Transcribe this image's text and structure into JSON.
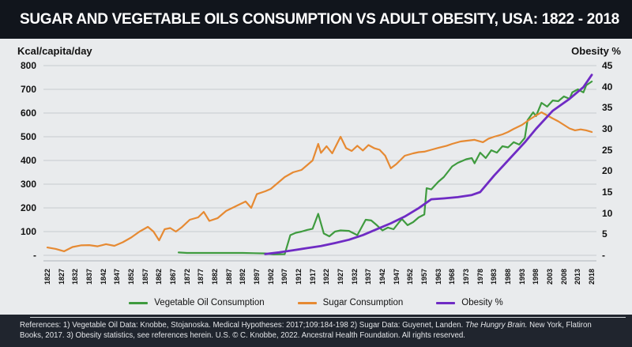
{
  "title": "SUGAR AND VEGETABLE OILS CONSUMPTION VS ADULT OBESITY, USA: 1822 - 2018",
  "left_axis": {
    "title": "Kcal/capita/day",
    "ticks": [
      "800",
      "700",
      "600",
      "500",
      "400",
      "300",
      "200",
      "100",
      "-"
    ]
  },
  "right_axis": {
    "title": "Obesity %",
    "ticks": [
      "45",
      "40",
      "35",
      "30",
      "25",
      "20",
      "15",
      "10",
      "5",
      "-"
    ]
  },
  "x_axis": {
    "labels": [
      "1822",
      "1827",
      "1832",
      "1837",
      "1842",
      "1847",
      "1852",
      "1857",
      "1862",
      "1867",
      "1872",
      "1877",
      "1882",
      "1887",
      "1892",
      "1897",
      "1902",
      "1907",
      "1912",
      "1917",
      "1922",
      "1927",
      "1932",
      "1937",
      "1942",
      "1947",
      "1952",
      "1957",
      "1963",
      "1968",
      "1973",
      "1978",
      "1983",
      "1988",
      "1993",
      "1998",
      "2003",
      "2008",
      "2013",
      "2018"
    ]
  },
  "legend": [
    {
      "label": "Vegetable Oil Consumption",
      "color": "#3f9b3f"
    },
    {
      "label": "Sugar Consumption",
      "color": "#e68a33"
    },
    {
      "label": "Obesity %",
      "color": "#6f2bc4"
    }
  ],
  "colors": {
    "titlebar_bg": "#11151c",
    "page_bg": "#20252e",
    "panel_bg": "#e9ebed",
    "gridline": "#c6cbd0",
    "axis_line": "#aeb4ba",
    "veg_oil": "#3f9b3f",
    "sugar": "#e68a33",
    "obesity": "#6f2bc4",
    "footer_text": "#e3e5e8"
  },
  "footer": {
    "segments": [
      {
        "text": "References: 1) Vegetable Oil Data: Knobbe, Stojanoska. Medical Hypotheses: 2017;109:184-198  2) Sugar Data: Guyenet, Landen. ",
        "italic": false
      },
      {
        "text": "The Hungry Brain.",
        "italic": true
      },
      {
        "text": " New York, Flatiron Books, 2017.  3) Obesity statistics, see references herein. U.S. © C. Knobbe, 2022. Ancestral Health Foundation. All rights reserved.",
        "italic": false
      }
    ]
  },
  "chart_data": {
    "type": "line",
    "title": "SUGAR AND VEGETABLE OILS CONSUMPTION VS ADULT OBESITY, USA: 1822 - 2018",
    "x_label_years": [
      1822,
      1827,
      1832,
      1837,
      1842,
      1847,
      1852,
      1857,
      1862,
      1867,
      1872,
      1877,
      1882,
      1887,
      1892,
      1897,
      1902,
      1907,
      1912,
      1917,
      1922,
      1927,
      1932,
      1937,
      1942,
      1947,
      1952,
      1957,
      1963,
      1968,
      1973,
      1978,
      1983,
      1988,
      1993,
      1998,
      2003,
      2008,
      2013,
      2018
    ],
    "left_ylabel": "Kcal/capita/day",
    "right_ylabel": "Obesity %",
    "left_ylim": [
      0,
      800
    ],
    "right_ylim": [
      0,
      45
    ],
    "grid": true,
    "legend_position": "bottom",
    "series": [
      {
        "name": "Vegetable Oil Consumption",
        "axis": "left",
        "color": "#3f9b3f",
        "points": [
          [
            1869,
            12
          ],
          [
            1872,
            10
          ],
          [
            1876,
            10
          ],
          [
            1880,
            10
          ],
          [
            1884,
            10
          ],
          [
            1888,
            10
          ],
          [
            1892,
            10
          ],
          [
            1896,
            9
          ],
          [
            1900,
            8
          ],
          [
            1903,
            4
          ],
          [
            1907,
            5
          ],
          [
            1909,
            85
          ],
          [
            1911,
            95
          ],
          [
            1913,
            100
          ],
          [
            1915,
            107
          ],
          [
            1917,
            112
          ],
          [
            1919,
            175
          ],
          [
            1921,
            92
          ],
          [
            1923,
            80
          ],
          [
            1925,
            100
          ],
          [
            1927,
            105
          ],
          [
            1930,
            103
          ],
          [
            1933,
            85
          ],
          [
            1936,
            150
          ],
          [
            1938,
            147
          ],
          [
            1940,
            127
          ],
          [
            1942,
            105
          ],
          [
            1944,
            117
          ],
          [
            1946,
            110
          ],
          [
            1948,
            140
          ],
          [
            1949,
            153
          ],
          [
            1951,
            127
          ],
          [
            1953,
            140
          ],
          [
            1955,
            160
          ],
          [
            1957,
            172
          ],
          [
            1958,
            283
          ],
          [
            1960,
            278
          ],
          [
            1963,
            310
          ],
          [
            1965,
            330
          ],
          [
            1968,
            375
          ],
          [
            1970,
            390
          ],
          [
            1973,
            405
          ],
          [
            1975,
            410
          ],
          [
            1976,
            388
          ],
          [
            1978,
            433
          ],
          [
            1980,
            410
          ],
          [
            1982,
            443
          ],
          [
            1984,
            433
          ],
          [
            1986,
            460
          ],
          [
            1988,
            455
          ],
          [
            1990,
            477
          ],
          [
            1992,
            467
          ],
          [
            1994,
            495
          ],
          [
            1995,
            570
          ],
          [
            1997,
            603
          ],
          [
            1998,
            587
          ],
          [
            2000,
            643
          ],
          [
            2002,
            627
          ],
          [
            2004,
            653
          ],
          [
            2006,
            650
          ],
          [
            2008,
            670
          ],
          [
            2010,
            660
          ],
          [
            2011,
            687
          ],
          [
            2013,
            700
          ],
          [
            2015,
            687
          ],
          [
            2016,
            717
          ],
          [
            2018,
            733
          ]
        ]
      },
      {
        "name": "Sugar Consumption",
        "axis": "left",
        "color": "#e68a33",
        "points": [
          [
            1822,
            33
          ],
          [
            1825,
            27
          ],
          [
            1828,
            17
          ],
          [
            1831,
            35
          ],
          [
            1834,
            42
          ],
          [
            1837,
            43
          ],
          [
            1840,
            38
          ],
          [
            1843,
            47
          ],
          [
            1846,
            40
          ],
          [
            1849,
            55
          ],
          [
            1852,
            75
          ],
          [
            1855,
            100
          ],
          [
            1858,
            120
          ],
          [
            1860,
            100
          ],
          [
            1862,
            63
          ],
          [
            1864,
            110
          ],
          [
            1866,
            115
          ],
          [
            1868,
            100
          ],
          [
            1870,
            117
          ],
          [
            1873,
            150
          ],
          [
            1876,
            160
          ],
          [
            1878,
            183
          ],
          [
            1880,
            145
          ],
          [
            1883,
            157
          ],
          [
            1886,
            187
          ],
          [
            1890,
            210
          ],
          [
            1893,
            227
          ],
          [
            1895,
            200
          ],
          [
            1897,
            258
          ],
          [
            1900,
            270
          ],
          [
            1902,
            280
          ],
          [
            1904,
            300
          ],
          [
            1907,
            330
          ],
          [
            1910,
            350
          ],
          [
            1913,
            360
          ],
          [
            1915,
            380
          ],
          [
            1917,
            400
          ],
          [
            1919,
            470
          ],
          [
            1920,
            432
          ],
          [
            1922,
            460
          ],
          [
            1924,
            430
          ],
          [
            1927,
            500
          ],
          [
            1929,
            452
          ],
          [
            1931,
            440
          ],
          [
            1933,
            462
          ],
          [
            1935,
            442
          ],
          [
            1937,
            465
          ],
          [
            1939,
            452
          ],
          [
            1941,
            445
          ],
          [
            1943,
            420
          ],
          [
            1945,
            367
          ],
          [
            1947,
            385
          ],
          [
            1950,
            420
          ],
          [
            1953,
            430
          ],
          [
            1955,
            435
          ],
          [
            1957,
            437
          ],
          [
            1960,
            445
          ],
          [
            1963,
            453
          ],
          [
            1966,
            462
          ],
          [
            1968,
            470
          ],
          [
            1971,
            480
          ],
          [
            1973,
            483
          ],
          [
            1976,
            487
          ],
          [
            1979,
            477
          ],
          [
            1981,
            492
          ],
          [
            1983,
            500
          ],
          [
            1986,
            510
          ],
          [
            1988,
            520
          ],
          [
            1990,
            533
          ],
          [
            1993,
            550
          ],
          [
            1996,
            575
          ],
          [
            1998,
            590
          ],
          [
            2000,
            603
          ],
          [
            2002,
            590
          ],
          [
            2004,
            577
          ],
          [
            2006,
            565
          ],
          [
            2008,
            550
          ],
          [
            2010,
            535
          ],
          [
            2012,
            527
          ],
          [
            2014,
            531
          ],
          [
            2016,
            527
          ],
          [
            2018,
            520
          ]
        ]
      },
      {
        "name": "Obesity %",
        "axis": "right",
        "color": "#6f2bc4",
        "points": [
          [
            1900,
            0.3
          ],
          [
            1905,
            0.7
          ],
          [
            1910,
            1.2
          ],
          [
            1915,
            1.7
          ],
          [
            1920,
            2.2
          ],
          [
            1925,
            2.9
          ],
          [
            1930,
            3.7
          ],
          [
            1935,
            4.8
          ],
          [
            1940,
            6.2
          ],
          [
            1945,
            7.6
          ],
          [
            1950,
            9.2
          ],
          [
            1955,
            11.2
          ],
          [
            1960,
            13.3
          ],
          [
            1965,
            13.5
          ],
          [
            1970,
            13.8
          ],
          [
            1975,
            14.3
          ],
          [
            1978,
            15.0
          ],
          [
            1983,
            18.9
          ],
          [
            1988,
            22.5
          ],
          [
            1994,
            26.8
          ],
          [
            1998,
            30.0
          ],
          [
            2004,
            34.3
          ],
          [
            2010,
            37.1
          ],
          [
            2015,
            39.9
          ],
          [
            2018,
            42.8
          ]
        ]
      }
    ]
  }
}
